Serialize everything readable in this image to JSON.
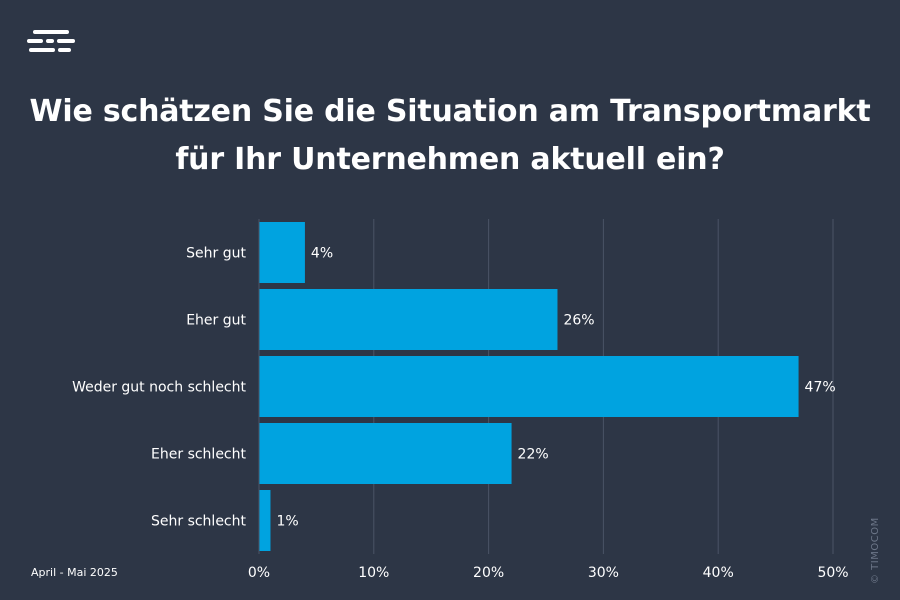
{
  "brand": {
    "logo_icon": "timocom-logo-icon"
  },
  "title_lines": [
    "Wie schätzen Sie die Situation am Transportmarkt",
    "für Ihr Unternehmen aktuell ein?"
  ],
  "footnote": "April - Mai 2025",
  "copyright": "© TIMOCOM",
  "colors": {
    "background": "#2d3646",
    "bar": "#00a3e0",
    "grid": "#4a5466",
    "text": "#ffffff"
  },
  "chart_data": {
    "type": "bar",
    "orientation": "horizontal",
    "title": "Wie schätzen Sie die Situation am Transportmarkt für Ihr Unternehmen aktuell ein?",
    "categories": [
      "Sehr gut",
      "Eher gut",
      "Weder gut noch schlecht",
      "Eher schlecht",
      "Sehr schlecht"
    ],
    "values": [
      4,
      26,
      47,
      22,
      1
    ],
    "value_labels": [
      "4%",
      "26%",
      "47%",
      "22%",
      "1%"
    ],
    "xlim": [
      0,
      50
    ],
    "xticks": [
      0,
      10,
      20,
      30,
      40,
      50
    ],
    "xtick_labels": [
      "0%",
      "10%",
      "20%",
      "30%",
      "40%",
      "50%"
    ],
    "grid": true
  }
}
